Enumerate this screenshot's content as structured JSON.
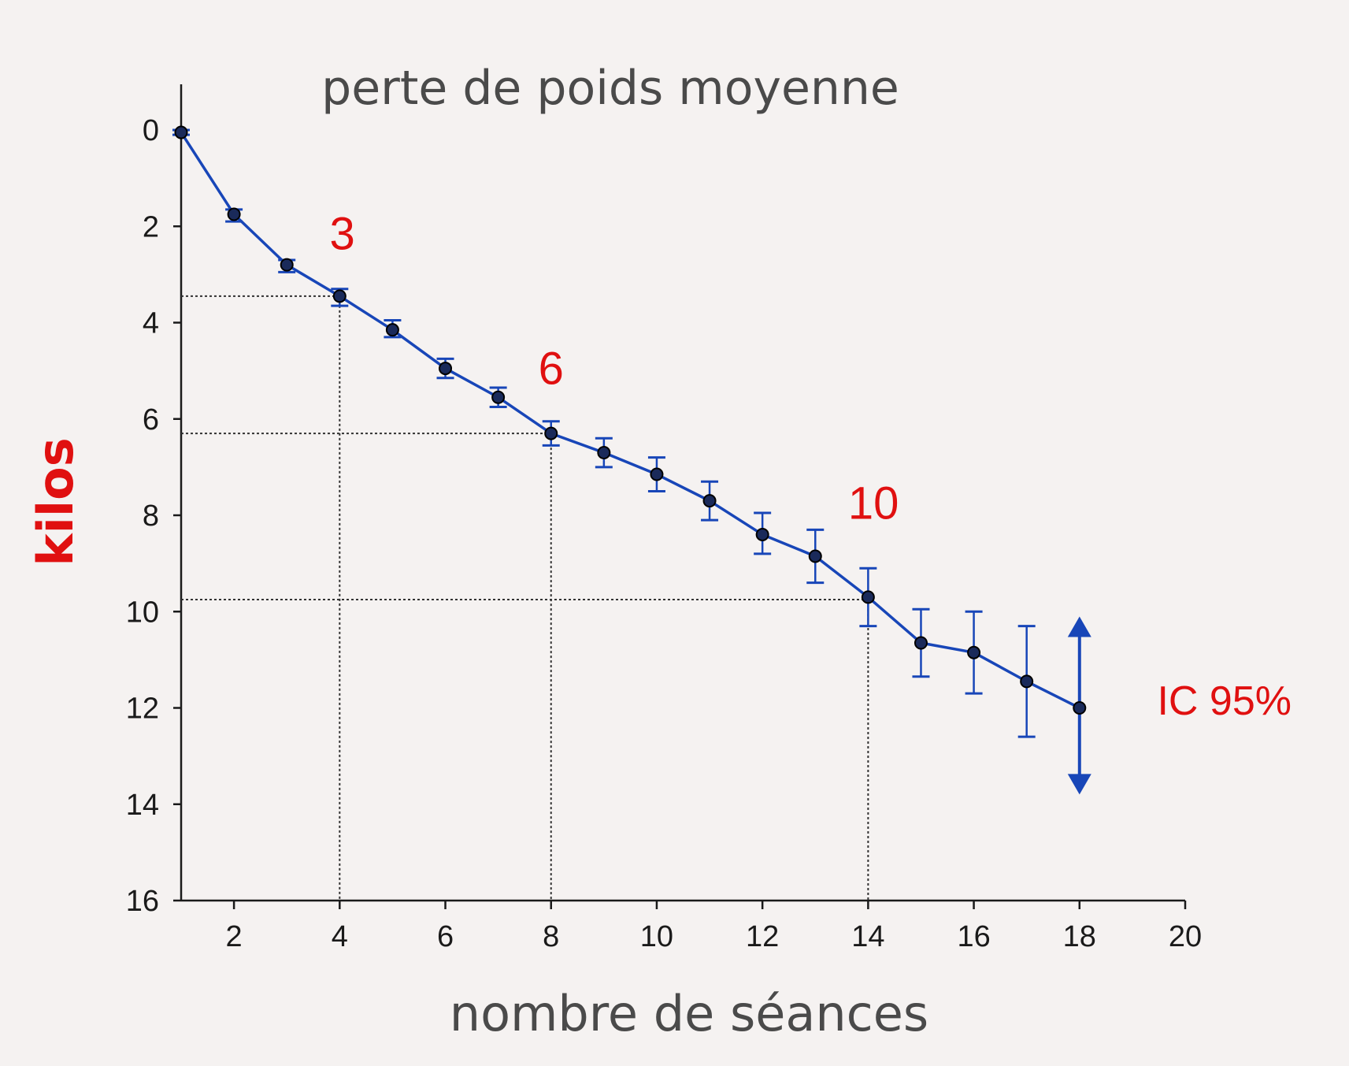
{
  "chart_data": {
    "type": "line",
    "title": "perte de poids moyenne",
    "xlabel": "nombre de séances",
    "ylabel": "kilos",
    "xlim": [
      1,
      20
    ],
    "ylim": [
      0,
      16
    ],
    "y_inverted": true,
    "grid": false,
    "x_ticks": [
      2,
      4,
      6,
      8,
      10,
      12,
      14,
      16,
      18,
      20
    ],
    "y_ticks": [
      0,
      2,
      4,
      6,
      8,
      10,
      12,
      14,
      16
    ],
    "series": [
      {
        "x": [
          1,
          2,
          3,
          4,
          5,
          6,
          7,
          8,
          9,
          10,
          11,
          12,
          13,
          14,
          15,
          16,
          17,
          18
        ],
        "values": [
          0.05,
          1.75,
          2.8,
          3.45,
          4.15,
          4.95,
          5.55,
          6.3,
          6.7,
          7.15,
          7.7,
          8.4,
          8.85,
          9.7,
          10.65,
          10.85,
          11.45,
          12.0
        ],
        "ci_low": [
          0.0,
          1.65,
          2.7,
          3.3,
          3.95,
          4.75,
          5.35,
          6.05,
          6.4,
          6.8,
          7.3,
          7.95,
          8.3,
          9.1,
          9.95,
          10.0,
          10.3,
          10.2
        ],
        "ci_high": [
          0.1,
          1.9,
          2.95,
          3.65,
          4.3,
          5.15,
          5.75,
          6.55,
          7.0,
          7.5,
          8.1,
          8.8,
          9.4,
          10.3,
          11.35,
          11.7,
          12.6,
          13.6
        ],
        "color": "#1846b8"
      }
    ],
    "annotations": [
      {
        "text": "3",
        "x": 4.05,
        "y": 2.15,
        "ref_y": 3.45
      },
      {
        "text": "6",
        "x": 8.0,
        "y": 4.95,
        "ref_y": 6.3
      },
      {
        "text": "10",
        "x": 14.1,
        "y": 7.75,
        "ref_y": 9.75
      }
    ],
    "ci_label": "IC 95%",
    "ci_arrow": {
      "x": 18,
      "y_top": 10.2,
      "y_bottom": 13.7
    },
    "colors": {
      "series": "#1846b8",
      "marker": "#1a2a5a",
      "highlight": "#e01010",
      "text": "#4a4a4a"
    }
  }
}
